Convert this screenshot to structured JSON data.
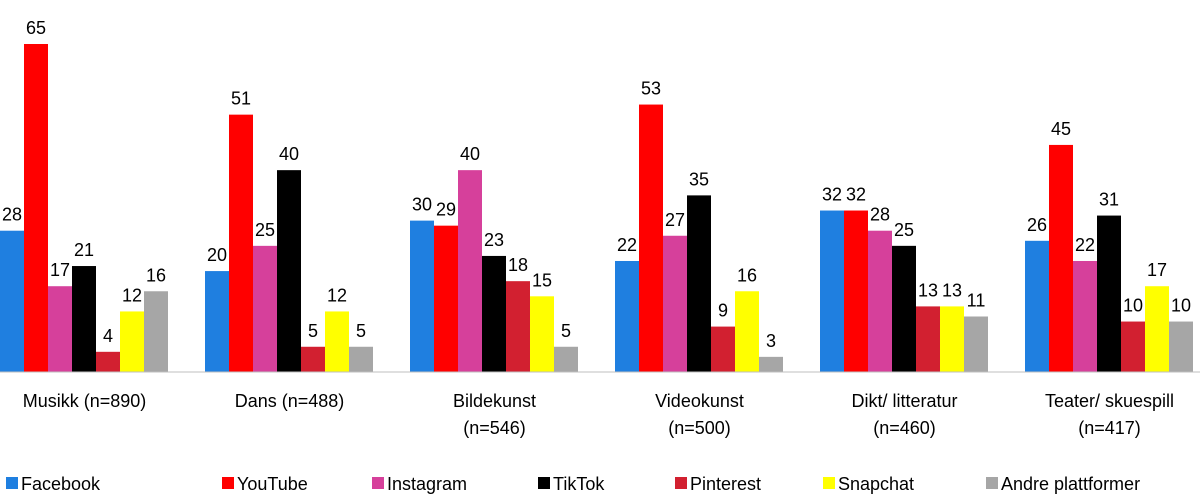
{
  "chart_data": {
    "type": "bar",
    "categories": [
      "Musikk (n=890)",
      "Dans (n=488)",
      "Bildekunst\n(n=546)",
      "Videokunst\n(n=500)",
      "Dikt/ litteratur\n(n=460)",
      "Teater/ skuespill\n(n=417)"
    ],
    "series": [
      {
        "name": "Facebook",
        "color": "#1f7fe0",
        "values": [
          28,
          20,
          30,
          22,
          32,
          26
        ]
      },
      {
        "name": "YouTube",
        "color": "#ff0000",
        "values": [
          65,
          51,
          29,
          53,
          32,
          45
        ]
      },
      {
        "name": "Instagram",
        "color": "#d6409b",
        "values": [
          17,
          25,
          40,
          27,
          28,
          22
        ]
      },
      {
        "name": "TikTok",
        "color": "#000000",
        "values": [
          21,
          40,
          23,
          35,
          25,
          31
        ]
      },
      {
        "name": "Pinterest",
        "color": "#d22030",
        "values": [
          4,
          5,
          18,
          9,
          13,
          10
        ]
      },
      {
        "name": "Snapchat",
        "color": "#ffff00",
        "values": [
          12,
          12,
          15,
          16,
          13,
          17
        ]
      },
      {
        "name": "Andre plattformer",
        "color": "#a6a6a6",
        "values": [
          16,
          5,
          5,
          3,
          11,
          10
        ]
      }
    ],
    "legend": "bottom"
  }
}
